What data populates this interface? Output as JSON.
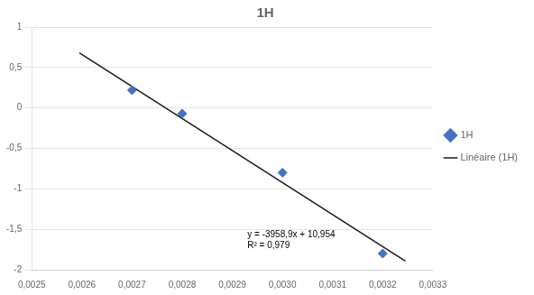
{
  "chart_data": {
    "type": "scatter",
    "title": "1H",
    "series": [
      {
        "name": "1H",
        "type": "scatter",
        "color": "#4472C4",
        "marker": "diamond",
        "x": [
          0.0027,
          0.0028,
          0.003,
          0.0032
        ],
        "values": [
          0.22,
          -0.07,
          -0.8,
          -1.8
        ]
      },
      {
        "name": "Linéaire (1H)",
        "type": "line",
        "color": "#1a1a1a",
        "line_style": "solid",
        "x": [
          0.002595,
          0.003245
        ],
        "values": [
          0.6806545,
          -1.8926305
        ]
      }
    ],
    "annotations": [
      {
        "text": "y = -3958,9x + 10,954",
        "x": 0.00293,
        "y": -1.6
      },
      {
        "text": "R² = 0,979",
        "x": 0.00293,
        "y": -1.73
      }
    ],
    "xlim": [
      0.0025,
      0.0033
    ],
    "xticks": [
      {
        "value": 0.0025,
        "label": "0,0025"
      },
      {
        "value": 0.0026,
        "label": "0,0026"
      },
      {
        "value": 0.0027,
        "label": "0,0027"
      },
      {
        "value": 0.0028,
        "label": "0,0028"
      },
      {
        "value": 0.0029,
        "label": "0,0029"
      },
      {
        "value": 0.003,
        "label": "0,0030"
      },
      {
        "value": 0.0031,
        "label": "0,0031"
      },
      {
        "value": 0.0032,
        "label": "0,0032"
      },
      {
        "value": 0.0033,
        "label": "0,0033"
      }
    ],
    "ylim": [
      -2.0,
      1.0
    ],
    "yticks": [
      -2,
      {
        "value": -1.5,
        "label": "-1,5"
      },
      -1,
      {
        "value": -0.5,
        "label": "-0,5"
      },
      0,
      {
        "value": 0.5,
        "label": "0,5"
      },
      1
    ],
    "grid": true,
    "legend": "right"
  }
}
